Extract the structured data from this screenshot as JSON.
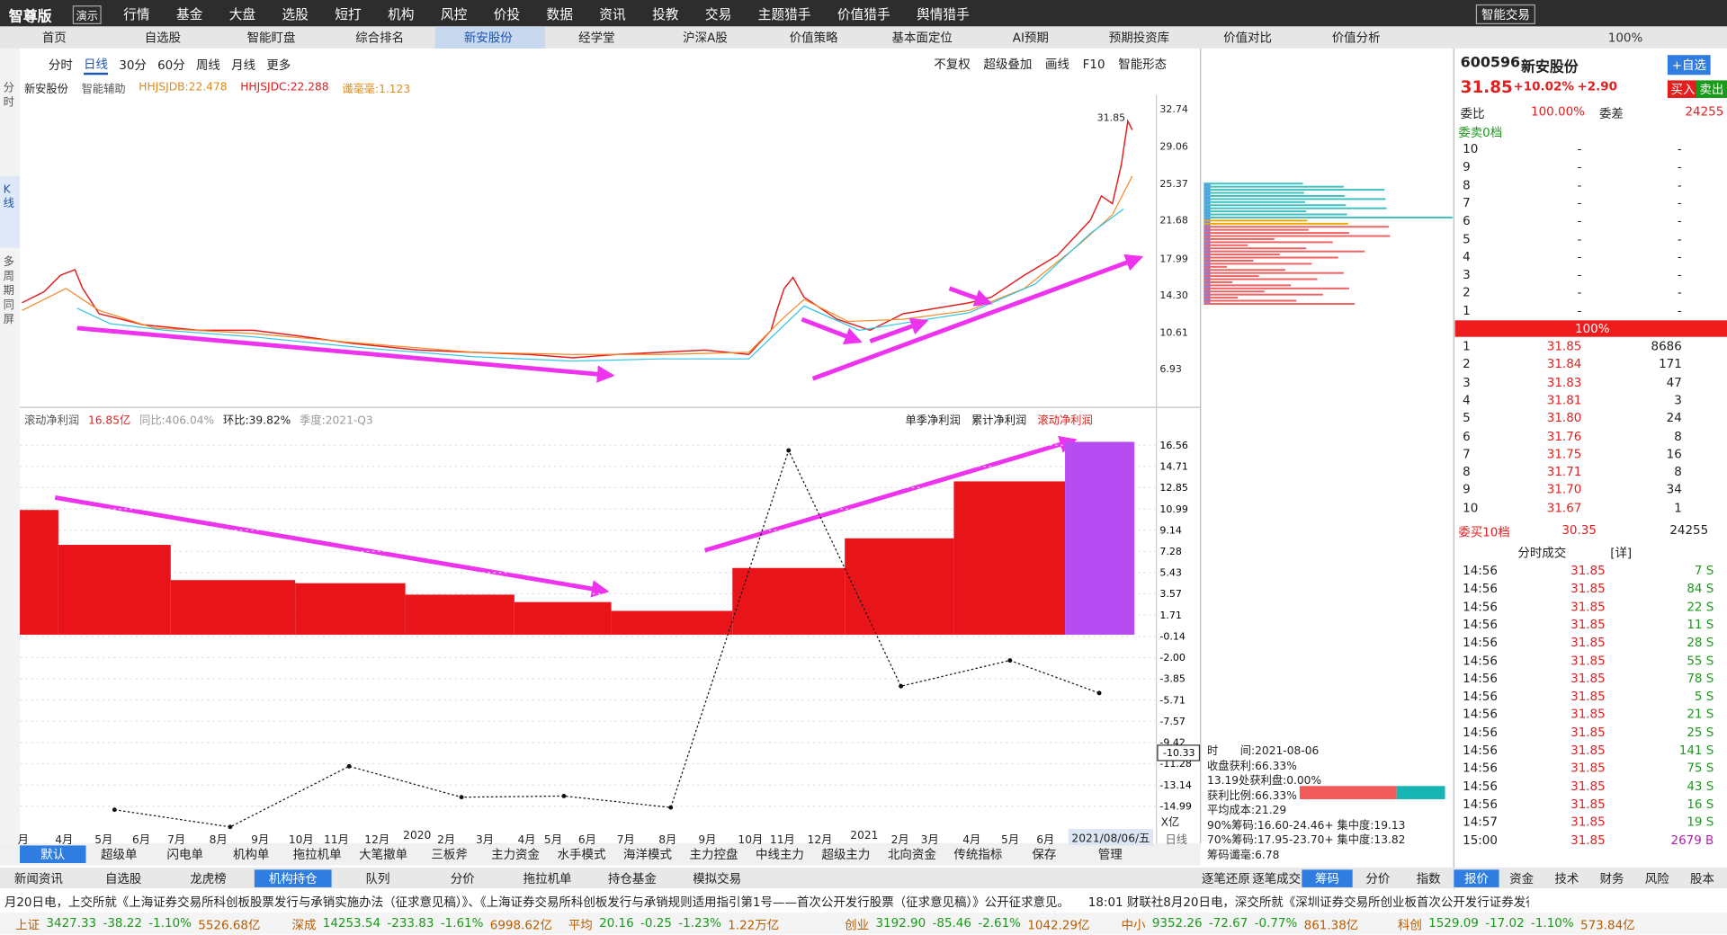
{
  "app": {
    "logo": "智尊版",
    "badge": "演示",
    "menu": [
      "行情",
      "基金",
      "大盘",
      "选股",
      "短打",
      "机构",
      "风控",
      "价投",
      "数据",
      "资讯",
      "投教",
      "交易",
      "主题猎手",
      "价值猎手",
      "舆情猎手"
    ],
    "smart_trade": "智能交易",
    "zoom": "100%"
  },
  "tabs": [
    "首页",
    "自选股",
    "智能盯盘",
    "综合排名",
    "新安股份",
    "经学堂",
    "沪深A股",
    "价值策略",
    "基本面定位",
    "AI预期",
    "预期投资库",
    "价值对比",
    "价值分析"
  ],
  "side": [
    "分时",
    "K线",
    "多周期同屏"
  ],
  "kline": {
    "periods": [
      "分时",
      "日线",
      "30分",
      "60分",
      "周线",
      "月线",
      "更多"
    ],
    "tools": [
      "不复权",
      "超级叠加",
      "画线",
      "F10",
      "智能形态"
    ],
    "legend": [
      "新安股份",
      "智能辅助",
      "HHJSJDB:22.478",
      "HHJSJDC:22.288",
      "谶毫毫:1.123"
    ],
    "price_labels": [
      "32.74",
      "29.06",
      "25.37",
      "21.68",
      "17.99",
      "14.30",
      "10.61",
      "6.93"
    ],
    "last_price": "31.85"
  },
  "profit": {
    "name": "滚动净利润",
    "value": "16.85亿",
    "yoy": "同比:406.04%",
    "qoq": "环比:39.82%",
    "quarter": "季度:2021-Q3",
    "modes": [
      "单季净利润",
      "累计净利润",
      "滚动净利润"
    ],
    "unit": "X亿",
    "ylim": [
      -16.88,
      18.33
    ],
    "yticks": [
      16.56,
      14.71,
      12.85,
      10.99,
      9.14,
      7.28,
      5.43,
      3.57,
      1.71,
      -0.14,
      {
        "value": -2,
        "label": "-2.00"
      },
      -3.85,
      -5.71,
      -7.57,
      -9.42,
      -11.28,
      -13.14,
      -14.99
    ],
    "bar_color": "#e8141a",
    "latest_color": "#b64cf2",
    "bars": [
      10.9,
      7.85,
      4.77,
      4.5,
      3.5,
      2.85,
      2.08,
      5.83,
      8.42,
      13.4,
      16.85
    ],
    "line": [
      -15.3,
      -16.8,
      -11.5,
      -14.2,
      -14.1,
      -15.1,
      16.1,
      -4.5,
      -2.25,
      -5.1
    ],
    "cursor": -10.33,
    "dates": [
      "月",
      "4月",
      "5月",
      "6月",
      "7月",
      "8月",
      "9月",
      "10月",
      "11月",
      "12月",
      "2020",
      "2月",
      "3月",
      "4月",
      "5月",
      "6月",
      "7月",
      "8月",
      "9月",
      "10月",
      "11月",
      "12月",
      "2021",
      "2月",
      "3月",
      "4月",
      "5月",
      "6月"
    ],
    "current_date": "2021/08/06/五",
    "period": "日线"
  },
  "chips": [
    "时　　间:2021-08-06",
    "收盘获利:66.33%",
    "13.19处获利盘:0.00%",
    "获利比例:66.33%",
    "平均成本:21.29",
    "90%筹码:16.60-24.46+ 集中度:19.13",
    "70%筹码:17.95-23.70+ 集中度:13.82",
    "筹码谶毫:6.78"
  ],
  "quote": {
    "code": "600596",
    "name": "新安股份",
    "add": "+自选",
    "price": "31.85",
    "pct": "+10.02%",
    "chg": "+2.90",
    "buy": "买入",
    "sell": "卖出",
    "wb_label": "委比",
    "wb": "100.00%",
    "wc_label": "委差",
    "wc": "24255",
    "sell_title": "委卖0档",
    "sells": [
      [
        "10",
        "-",
        "-"
      ],
      [
        "9",
        "-",
        "-"
      ],
      [
        "8",
        "-",
        "-"
      ],
      [
        "7",
        "-",
        "-"
      ],
      [
        "6",
        "-",
        "-"
      ],
      [
        "5",
        "-",
        "-"
      ],
      [
        "4",
        "-",
        "-"
      ],
      [
        "3",
        "-",
        "-"
      ],
      [
        "2",
        "-",
        "-"
      ],
      [
        "1",
        "-",
        "-"
      ]
    ],
    "limit": "100%",
    "buys": [
      [
        "1",
        "31.85",
        "8686"
      ],
      [
        "2",
        "31.84",
        "171"
      ],
      [
        "3",
        "31.83",
        "47"
      ],
      [
        "4",
        "31.81",
        "3"
      ],
      [
        "5",
        "31.80",
        "24"
      ],
      [
        "6",
        "31.76",
        "8"
      ],
      [
        "7",
        "31.75",
        "16"
      ],
      [
        "8",
        "31.71",
        "8"
      ],
      [
        "9",
        "31.70",
        "34"
      ],
      [
        "10",
        "31.67",
        "1"
      ]
    ],
    "buy_title": "委买10档",
    "buy_avg": "30.35",
    "buy_total": "24255",
    "trades_title": "分时成交",
    "detail": "[详]",
    "trades": [
      [
        "14:56",
        "31.85",
        "7 S"
      ],
      [
        "14:56",
        "31.85",
        "84 S"
      ],
      [
        "14:56",
        "31.85",
        "22 S"
      ],
      [
        "14:56",
        "31.85",
        "11 S"
      ],
      [
        "14:56",
        "31.85",
        "28 S"
      ],
      [
        "14:56",
        "31.85",
        "55 S"
      ],
      [
        "14:56",
        "31.85",
        "78 S"
      ],
      [
        "14:56",
        "31.85",
        "5 S"
      ],
      [
        "14:56",
        "31.85",
        "21 S"
      ],
      [
        "14:56",
        "31.85",
        "25 S"
      ],
      [
        "14:56",
        "31.85",
        "141 S"
      ],
      [
        "14:56",
        "31.85",
        "75 S"
      ],
      [
        "14:56",
        "31.85",
        "43 S"
      ],
      [
        "14:56",
        "31.85",
        "16 S"
      ],
      [
        "14:57",
        "31.85",
        "19 S"
      ],
      [
        "15:00",
        "31.85",
        "2679 B"
      ]
    ],
    "tabs": [
      "报价",
      "资金",
      "技术",
      "财务",
      "风险",
      "股本"
    ]
  },
  "indicators": [
    "默认",
    "超级单",
    "闪电单",
    "机构单",
    "拖拉机单",
    "大笔撤单",
    "三板斧",
    "主力资金",
    "水手模式",
    "海洋模式",
    "主力控盘",
    "中线主力",
    "超级主力",
    "北向资金",
    "传统指标",
    "保存",
    "管理"
  ],
  "info_tabs": [
    "新闻资讯",
    "自选股",
    "龙虎榜",
    "机构持仓",
    "队列",
    "分价",
    "拖拉机单",
    "持仓基金",
    "模拟交易"
  ],
  "chip_tabs": [
    "逐笔还原",
    "逐笔成交",
    "筹码",
    "分价",
    "指数"
  ],
  "ticker": [
    "月20日电，上交所就《上海证券交易所科创板股票发行与承销实施办法（征求意见稿）》、《上海证券交易所科创板发行与承销规则适用指引第1号——首次公开发行股票（征求意见稿）》公开征求意见。",
    "18:01 财联社8月20日电，深交所就《深圳证券交易所创业板首次公开发行证券发行与"
  ],
  "indices": [
    [
      "上证",
      "3427.33",
      "-38.22",
      "-1.10%",
      "5526.68亿"
    ],
    [
      "深成",
      "14253.54",
      "-233.83",
      "-1.61%",
      "6998.62亿"
    ],
    [
      "平均",
      "20.16",
      "-0.25",
      "-1.23%",
      "1.22万亿"
    ],
    [
      "创业",
      "3192.90",
      "-85.46",
      "-2.61%",
      "1042.29亿"
    ],
    [
      "中小",
      "9352.26",
      "-72.67",
      "-0.77%",
      "861.38亿"
    ],
    [
      "科创",
      "1529.09",
      "-17.02",
      "-1.10%",
      "573.84亿"
    ]
  ]
}
